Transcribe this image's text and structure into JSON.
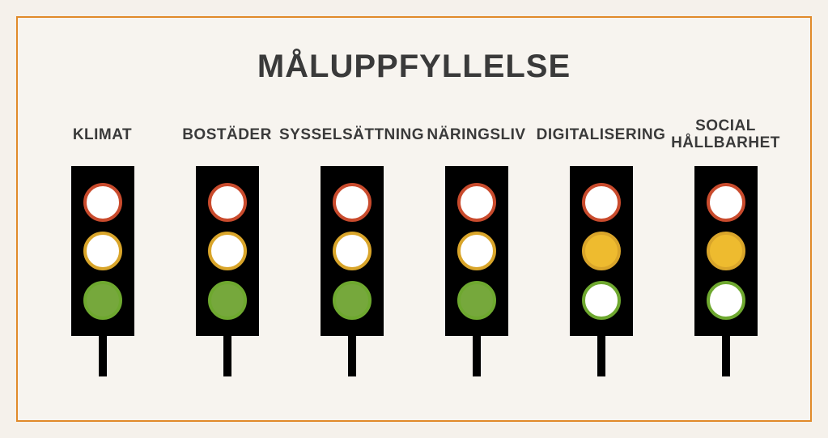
{
  "title": "MÅLUPPFYLLELSE",
  "colors": {
    "frame_border": "#e08a2a",
    "background": "#f7f4ef",
    "text": "#3a3a3a",
    "housing": "#000000",
    "off_fill": "#ffffff",
    "lamp_borders": {
      "red": "#c94b2d",
      "yellow": "#d9a52a",
      "green": "#6ea82f"
    },
    "lamp_on_fill": {
      "red": "#c94b2d",
      "yellow": "#eebb2f",
      "green": "#76a83c"
    }
  },
  "lights": [
    {
      "label": "KLIMAT",
      "status": "green"
    },
    {
      "label": "BOSTÄDER",
      "status": "green"
    },
    {
      "label": "SYSSELSÄTTNING",
      "status": "green"
    },
    {
      "label": "NÄRINGSLIV",
      "status": "green"
    },
    {
      "label": "DIGITALISERING",
      "status": "yellow"
    },
    {
      "label": "SOCIAL\nHÅLLBARHET",
      "status": "yellow"
    }
  ],
  "layout": {
    "title_fontsize": 40,
    "label_fontsize": 19,
    "housing_size": [
      78,
      210
    ],
    "lamp_diameter": 48,
    "lamp_border_width": 4,
    "pole_size": [
      10,
      50
    ]
  }
}
